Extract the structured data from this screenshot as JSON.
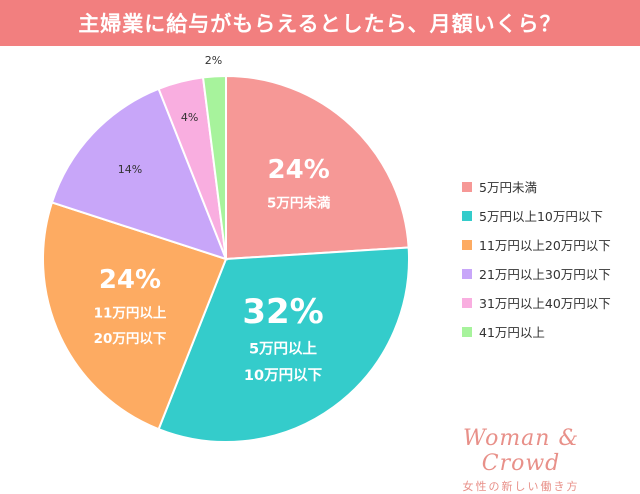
{
  "header": {
    "title": "主婦業に給与がもらえるとしたら、月額いくら？"
  },
  "chart_data": {
    "type": "pie",
    "title": "主婦業に給与がもらえるとしたら、月額いくら？",
    "slices": [
      {
        "label": "5万円未満",
        "value": 24,
        "display": "24%",
        "inner_label": [
          "5万円未満"
        ],
        "color": "#f69896",
        "text_color": "#ffffff"
      },
      {
        "label": "5万円以上10万円以下",
        "value": 32,
        "display": "32%",
        "inner_label": [
          "5万円以上",
          "10万円以下"
        ],
        "color": "#34cccb",
        "text_color": "#ffffff"
      },
      {
        "label": "11万円以上20万円以下",
        "value": 24,
        "display": "24%",
        "inner_label": [
          "11万円以上",
          "20万円以下"
        ],
        "color": "#fdab62",
        "text_color": "#ffffff"
      },
      {
        "label": "21万円以上30万円以下",
        "value": 14,
        "display": "14%",
        "inner_label": [],
        "color": "#c8a6f9",
        "text_color": "#333333"
      },
      {
        "label": "31万円以上40万円以下",
        "value": 4,
        "display": "4%",
        "inner_label": [],
        "color": "#f9aee0",
        "text_color": "#333333"
      },
      {
        "label": "41万円以上",
        "value": 2,
        "display": "2%",
        "inner_label": [],
        "color": "#a7f39c",
        "text_color": "#333333"
      }
    ],
    "legend_position": "right"
  },
  "brand": {
    "logo": "Woman & Crowd",
    "tagline": "女性の新しい働き方"
  }
}
